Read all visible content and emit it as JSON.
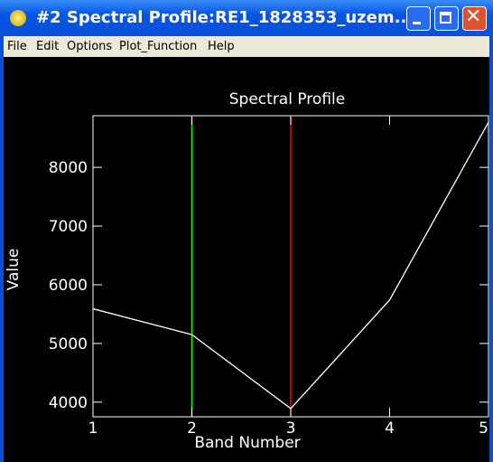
{
  "window": {
    "title": "#2 Spectral Profile:RE1_1828353_uzem...",
    "menu": [
      "File",
      "Edit",
      "Options",
      "Plot_Function",
      "Help"
    ]
  },
  "chart_data": {
    "type": "line",
    "title": "Spectral Profile",
    "x_label": "Band Number",
    "y_label": "Value",
    "x": [
      1,
      2,
      3,
      4,
      5
    ],
    "series": [
      {
        "name": null,
        "color": "#ffffff",
        "values": [
          5590,
          5150,
          3890,
          5740,
          8770
        ]
      }
    ],
    "xlim": [
      1,
      5
    ],
    "xticks": [
      1,
      2,
      3,
      4,
      5
    ],
    "ylim": [
      3750,
      8880
    ],
    "yticks": [
      4000,
      5000,
      6000,
      7000,
      8000
    ],
    "markers": [
      {
        "x": 2,
        "color": "#00ff00"
      },
      {
        "x": 3,
        "color": "#ff0000"
      }
    ],
    "background": "#000000"
  }
}
